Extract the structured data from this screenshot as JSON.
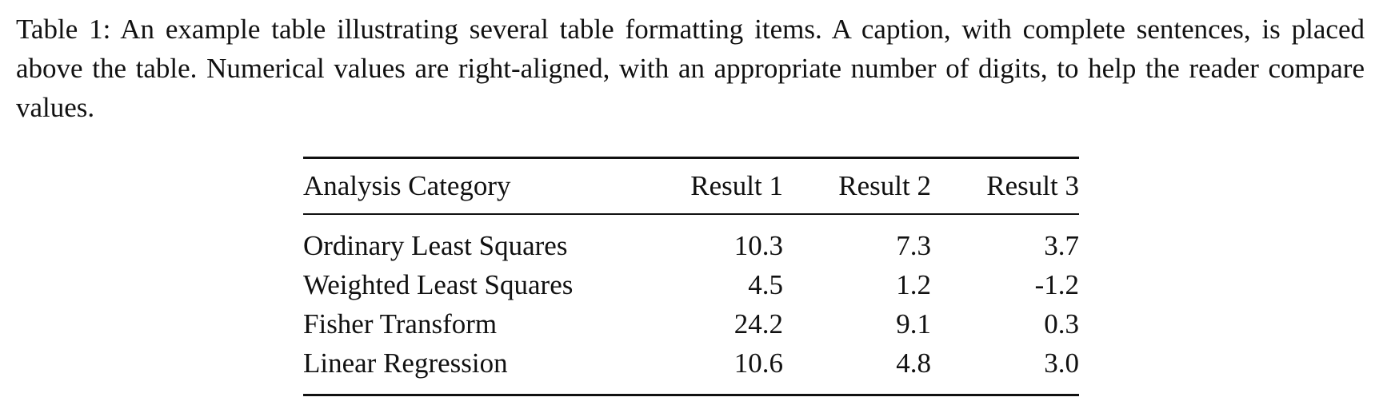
{
  "caption": "Table 1: An example table illustrating several table formatting items. A caption, with complete sentences, is placed above the table. Numerical values are right-aligned, with an appropriate number of digits, to help the reader compare values.",
  "table": {
    "headers": [
      "Analysis Category",
      "Result 1",
      "Result 2",
      "Result 3"
    ],
    "rows": [
      [
        "Ordinary Least Squares",
        "10.3",
        "7.3",
        "3.7"
      ],
      [
        "Weighted Least Squares",
        "4.5",
        "1.2",
        "-1.2"
      ],
      [
        "Fisher Transform",
        "24.2",
        "9.1",
        "0.3"
      ],
      [
        "Linear Regression",
        "10.6",
        "4.8",
        "3.0"
      ]
    ]
  }
}
